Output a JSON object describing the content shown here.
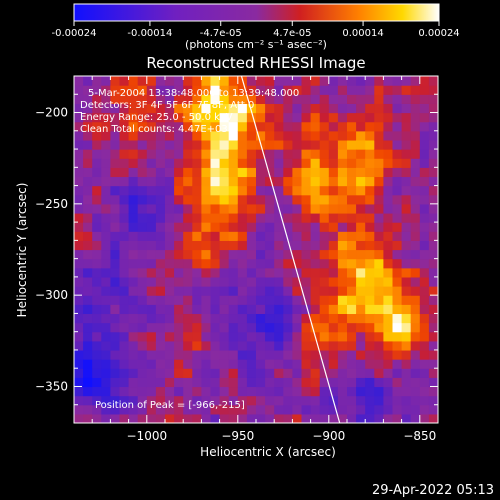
{
  "colorbar": {
    "tick_labels": [
      "-0.00024",
      "-0.00014",
      "-4.7e-05",
      "4.7e-05",
      "0.00014",
      "0.00024"
    ],
    "unit_label": "(photons cm⁻² s⁻¹ asec⁻²)",
    "min": -0.00024,
    "max": 0.00024
  },
  "chart_data": {
    "type": "heatmap",
    "title": "Reconstructed RHESSI Image",
    "xlabel": "Heliocentric X (arcsec)",
    "ylabel": "Heliocentric Y (arcsec)",
    "xlim": [
      -1040,
      -840
    ],
    "ylim": [
      -370,
      -180
    ],
    "xticks": [
      -1000,
      -950,
      -900,
      -850
    ],
    "yticks": [
      -200,
      -250,
      -300,
      -350
    ],
    "info_lines": [
      "5-Mar-2004 13:38:48.000 to 13:39:48.000",
      "Detectors: 3F 4F 5F 6F 7F 8F, Att 0",
      "Energy Range: 25.0 - 50.0 keV",
      "Clean      Total counts: 4.47E+03"
    ],
    "peak_label": "Position of Peak = [-966,-215]",
    "peak": [
      -966,
      -215
    ],
    "limb_line": [
      [
        -948,
        -180
      ],
      [
        -894,
        -370
      ]
    ],
    "colormap": [
      "#1010ff",
      "#6020c0",
      "#8a2aa0",
      "#d02020",
      "#ff8000",
      "#ffd800",
      "#ffffff"
    ],
    "grid_step": 5,
    "sources": [
      {
        "x": -958,
        "y": -205,
        "sx": 14,
        "sy": 22,
        "amp": 1.0
      },
      {
        "x": -965,
        "y": -255,
        "sx": 14,
        "sy": 16,
        "amp": 0.6
      },
      {
        "x": -905,
        "y": -235,
        "sx": 12,
        "sy": 26,
        "amp": 0.55
      },
      {
        "x": -878,
        "y": -230,
        "sx": 10,
        "sy": 20,
        "amp": 0.6
      },
      {
        "x": -880,
        "y": -292,
        "sx": 13,
        "sy": 16,
        "amp": 0.85
      },
      {
        "x": -862,
        "y": -315,
        "sx": 9,
        "sy": 14,
        "amp": 0.7
      },
      {
        "x": -900,
        "y": -320,
        "sx": 10,
        "sy": 14,
        "amp": 0.5
      },
      {
        "x": -1010,
        "y": -205,
        "sx": 12,
        "sy": 14,
        "amp": 0.35
      },
      {
        "x": -985,
        "y": -330,
        "sx": 10,
        "sy": 12,
        "amp": 0.25
      },
      {
        "x": -1022,
        "y": -320,
        "sx": 12,
        "sy": 30,
        "amp": -0.45
      },
      {
        "x": -1000,
        "y": -250,
        "sx": 14,
        "sy": 12,
        "amp": -0.5
      },
      {
        "x": -935,
        "y": -310,
        "sx": 14,
        "sy": 22,
        "amp": -0.5
      },
      {
        "x": -1030,
        "y": -345,
        "sx": 10,
        "sy": 12,
        "amp": -0.6
      },
      {
        "x": -878,
        "y": -355,
        "sx": 14,
        "sy": 12,
        "amp": -0.45
      }
    ]
  },
  "timestamp": "29-Apr-2022 05:13"
}
